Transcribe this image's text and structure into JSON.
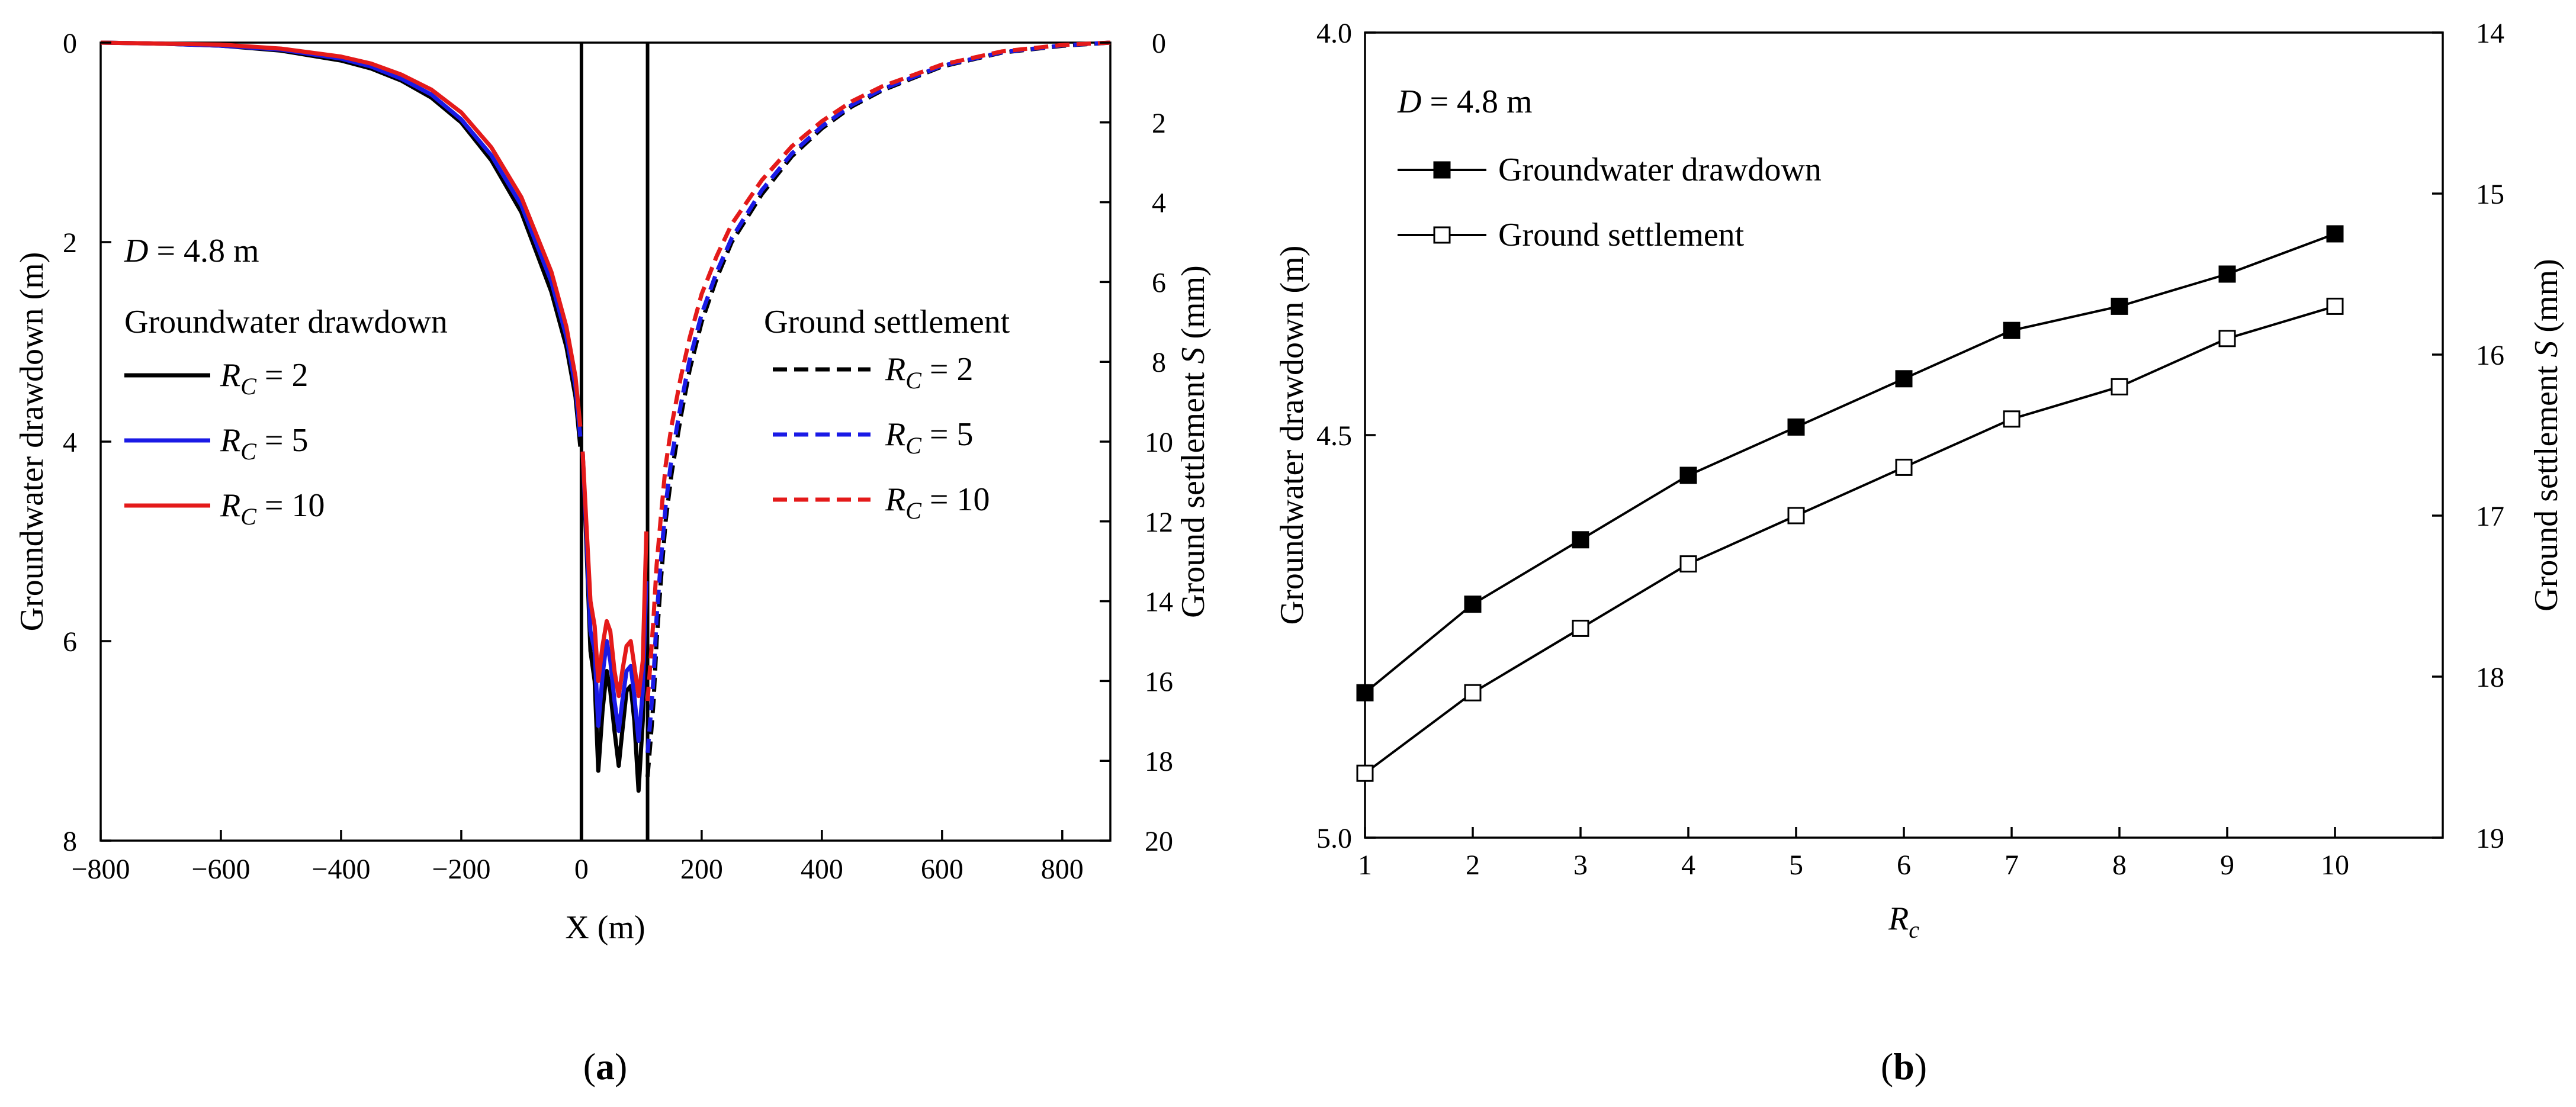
{
  "colors": {
    "black": "#000000",
    "blue": "#1a1ae6",
    "red": "#e41a1a"
  },
  "panel_labels": {
    "a": "a",
    "b": "b"
  },
  "chart_data": [
    {
      "id": "a",
      "type": "line",
      "xlabel": "X (m)",
      "ylabel_left": "Groundwater drawdown (m)",
      "ylabel_right_prefix": "Ground settlement ",
      "ylabel_right_var": "S",
      "ylabel_right_suffix": " (mm)",
      "xlim": [
        -800,
        880
      ],
      "ylim_left": [
        0,
        8
      ],
      "ylim_right": [
        0,
        20
      ],
      "x_ticks": [
        -800,
        -600,
        -400,
        -200,
        0,
        200,
        400,
        600,
        800
      ],
      "x_tick_labels": [
        "−800",
        "−600",
        "−400",
        "−200",
        "0",
        "200",
        "400",
        "600",
        "800"
      ],
      "y_left_ticks": [
        0,
        2,
        4,
        6,
        8
      ],
      "y_right_ticks": [
        0,
        2,
        4,
        6,
        8,
        10,
        12,
        14,
        16,
        18,
        20
      ],
      "annotation": {
        "var": "D",
        "rest": " = 4.8 m"
      },
      "legend_drawdown_title": "Groundwater drawdown",
      "legend_settlement_title": "Ground settlement",
      "walls_x": [
        0,
        110
      ],
      "drawdown_series": [
        {
          "name": "R_C = 2",
          "var": "R",
          "sub": "C",
          "value": " = 2",
          "color": "#000000",
          "left": {
            "x": [
              -800,
              -700,
              -600,
              -500,
              -400,
              -350,
              -300,
              -250,
              -200,
              -150,
              -100,
              -50,
              -25,
              -10,
              -2
            ],
            "y": [
              0,
              0.01,
              0.03,
              0.08,
              0.18,
              0.26,
              0.38,
              0.55,
              0.8,
              1.18,
              1.7,
              2.5,
              3.05,
              3.55,
              4.05
            ]
          },
          "right": {
            "x": [
              2,
              8,
              15,
              22,
              28,
              35,
              42,
              48,
              55,
              62,
              68,
              75,
              82,
              88,
              95,
              102,
              108
            ],
            "y": [
              4.1,
              5.0,
              6.1,
              6.4,
              7.3,
              6.7,
              6.3,
              6.5,
              6.9,
              7.25,
              6.9,
              6.5,
              6.45,
              6.8,
              7.5,
              6.8,
              5.6
            ]
          }
        },
        {
          "name": "R_C = 5",
          "var": "R",
          "sub": "C",
          "value": " = 5",
          "color": "#1a1ae6",
          "left": {
            "x": [
              -800,
              -700,
              -600,
              -500,
              -400,
              -350,
              -300,
              -250,
              -200,
              -150,
              -100,
              -50,
              -25,
              -10,
              -2
            ],
            "y": [
              0,
              0.01,
              0.03,
              0.07,
              0.16,
              0.24,
              0.36,
              0.52,
              0.77,
              1.13,
              1.63,
              2.4,
              2.95,
              3.45,
              3.95
            ]
          },
          "right": {
            "x": [
              2,
              8,
              15,
              22,
              28,
              35,
              42,
              48,
              55,
              62,
              68,
              75,
              82,
              88,
              95,
              102,
              108
            ],
            "y": [
              4.1,
              4.9,
              5.9,
              6.1,
              6.85,
              6.35,
              6.0,
              6.2,
              6.6,
              6.9,
              6.6,
              6.3,
              6.25,
              6.55,
              7.0,
              6.5,
              5.4
            ]
          }
        },
        {
          "name": "R_C = 10",
          "var": "R",
          "sub": "C",
          "value": " = 10",
          "color": "#e41a1a",
          "left": {
            "x": [
              -800,
              -700,
              -600,
              -500,
              -400,
              -350,
              -300,
              -250,
              -200,
              -150,
              -100,
              -50,
              -25,
              -10,
              -2
            ],
            "y": [
              0,
              0.01,
              0.02,
              0.06,
              0.14,
              0.21,
              0.32,
              0.47,
              0.7,
              1.05,
              1.55,
              2.3,
              2.85,
              3.35,
              3.85
            ]
          },
          "right": {
            "x": [
              2,
              8,
              15,
              22,
              28,
              35,
              42,
              48,
              55,
              62,
              68,
              75,
              82,
              88,
              95,
              102,
              108
            ],
            "y": [
              4.1,
              4.8,
              5.6,
              5.85,
              6.4,
              6.05,
              5.8,
              5.9,
              6.3,
              6.55,
              6.3,
              6.05,
              6.0,
              6.25,
              6.55,
              6.2,
              4.9
            ]
          }
        }
      ],
      "settlement_series": [
        {
          "name": "R_C = 2",
          "var": "R",
          "sub": "C",
          "value": " = 2",
          "color": "#000000",
          "x": [
            110,
            115,
            120,
            125,
            132,
            140,
            150,
            165,
            180,
            200,
            225,
            250,
            300,
            350,
            400,
            450,
            500,
            600,
            700,
            800,
            880
          ],
          "y": [
            18.4,
            17.5,
            16.5,
            15.0,
            13.5,
            12.0,
            10.8,
            9.4,
            8.2,
            7.0,
            5.9,
            5.0,
            3.8,
            2.85,
            2.15,
            1.6,
            1.2,
            0.6,
            0.25,
            0.08,
            0.0
          ]
        },
        {
          "name": "R_C = 5",
          "var": "R",
          "sub": "C",
          "value": " = 5",
          "color": "#1a1ae6",
          "x": [
            110,
            115,
            120,
            125,
            132,
            140,
            150,
            165,
            180,
            200,
            225,
            250,
            300,
            350,
            400,
            450,
            500,
            600,
            700,
            800,
            880
          ],
          "y": [
            17.8,
            16.9,
            15.9,
            14.4,
            13.0,
            11.6,
            10.4,
            9.1,
            7.95,
            6.8,
            5.75,
            4.9,
            3.7,
            2.78,
            2.1,
            1.56,
            1.17,
            0.58,
            0.24,
            0.07,
            0.0
          ]
        },
        {
          "name": "R_C = 10",
          "var": "R",
          "sub": "C",
          "value": " = 10",
          "color": "#e41a1a",
          "x": [
            110,
            115,
            120,
            125,
            132,
            140,
            150,
            165,
            180,
            200,
            225,
            250,
            300,
            350,
            400,
            450,
            500,
            600,
            700,
            800,
            880
          ],
          "y": [
            16.5,
            15.5,
            14.4,
            13.1,
            11.9,
            10.6,
            9.6,
            8.4,
            7.4,
            6.3,
            5.35,
            4.55,
            3.45,
            2.6,
            1.97,
            1.47,
            1.1,
            0.55,
            0.22,
            0.06,
            0.0
          ]
        }
      ]
    },
    {
      "id": "b",
      "type": "line",
      "xlabel_var": "R",
      "xlabel_sub": "c",
      "ylabel_left": "Groundwater drawdown (m)",
      "ylabel_right_prefix": "Ground settlement ",
      "ylabel_right_var": "S",
      "ylabel_right_suffix": " (mm)",
      "xlim": [
        1,
        11
      ],
      "ylim_left": [
        4.0,
        5.0
      ],
      "ylim_right": [
        14,
        19
      ],
      "x_ticks": [
        1,
        2,
        3,
        4,
        5,
        6,
        7,
        8,
        9,
        10
      ],
      "y_left_ticks": [
        4.0,
        4.5,
        5.0
      ],
      "y_left_tick_labels": [
        "4.0",
        "4.5",
        "5.0"
      ],
      "y_right_ticks": [
        14,
        15,
        16,
        17,
        18,
        19
      ],
      "annotation": {
        "var": "D",
        "rest": " = 4.8 m"
      },
      "categories": [
        1,
        2,
        3,
        4,
        5,
        6,
        7,
        8,
        9,
        10
      ],
      "series": [
        {
          "name": "Groundwater drawdown",
          "marker": "filled-square",
          "axis": "left",
          "values": [
            4.82,
            4.71,
            4.63,
            4.55,
            4.49,
            4.43,
            4.37,
            4.34,
            4.3,
            4.25
          ]
        },
        {
          "name": "Ground settlement",
          "marker": "open-square",
          "axis": "right",
          "values": [
            18.6,
            18.1,
            17.7,
            17.3,
            17.0,
            16.7,
            16.4,
            16.2,
            15.9,
            15.7
          ]
        }
      ]
    }
  ]
}
